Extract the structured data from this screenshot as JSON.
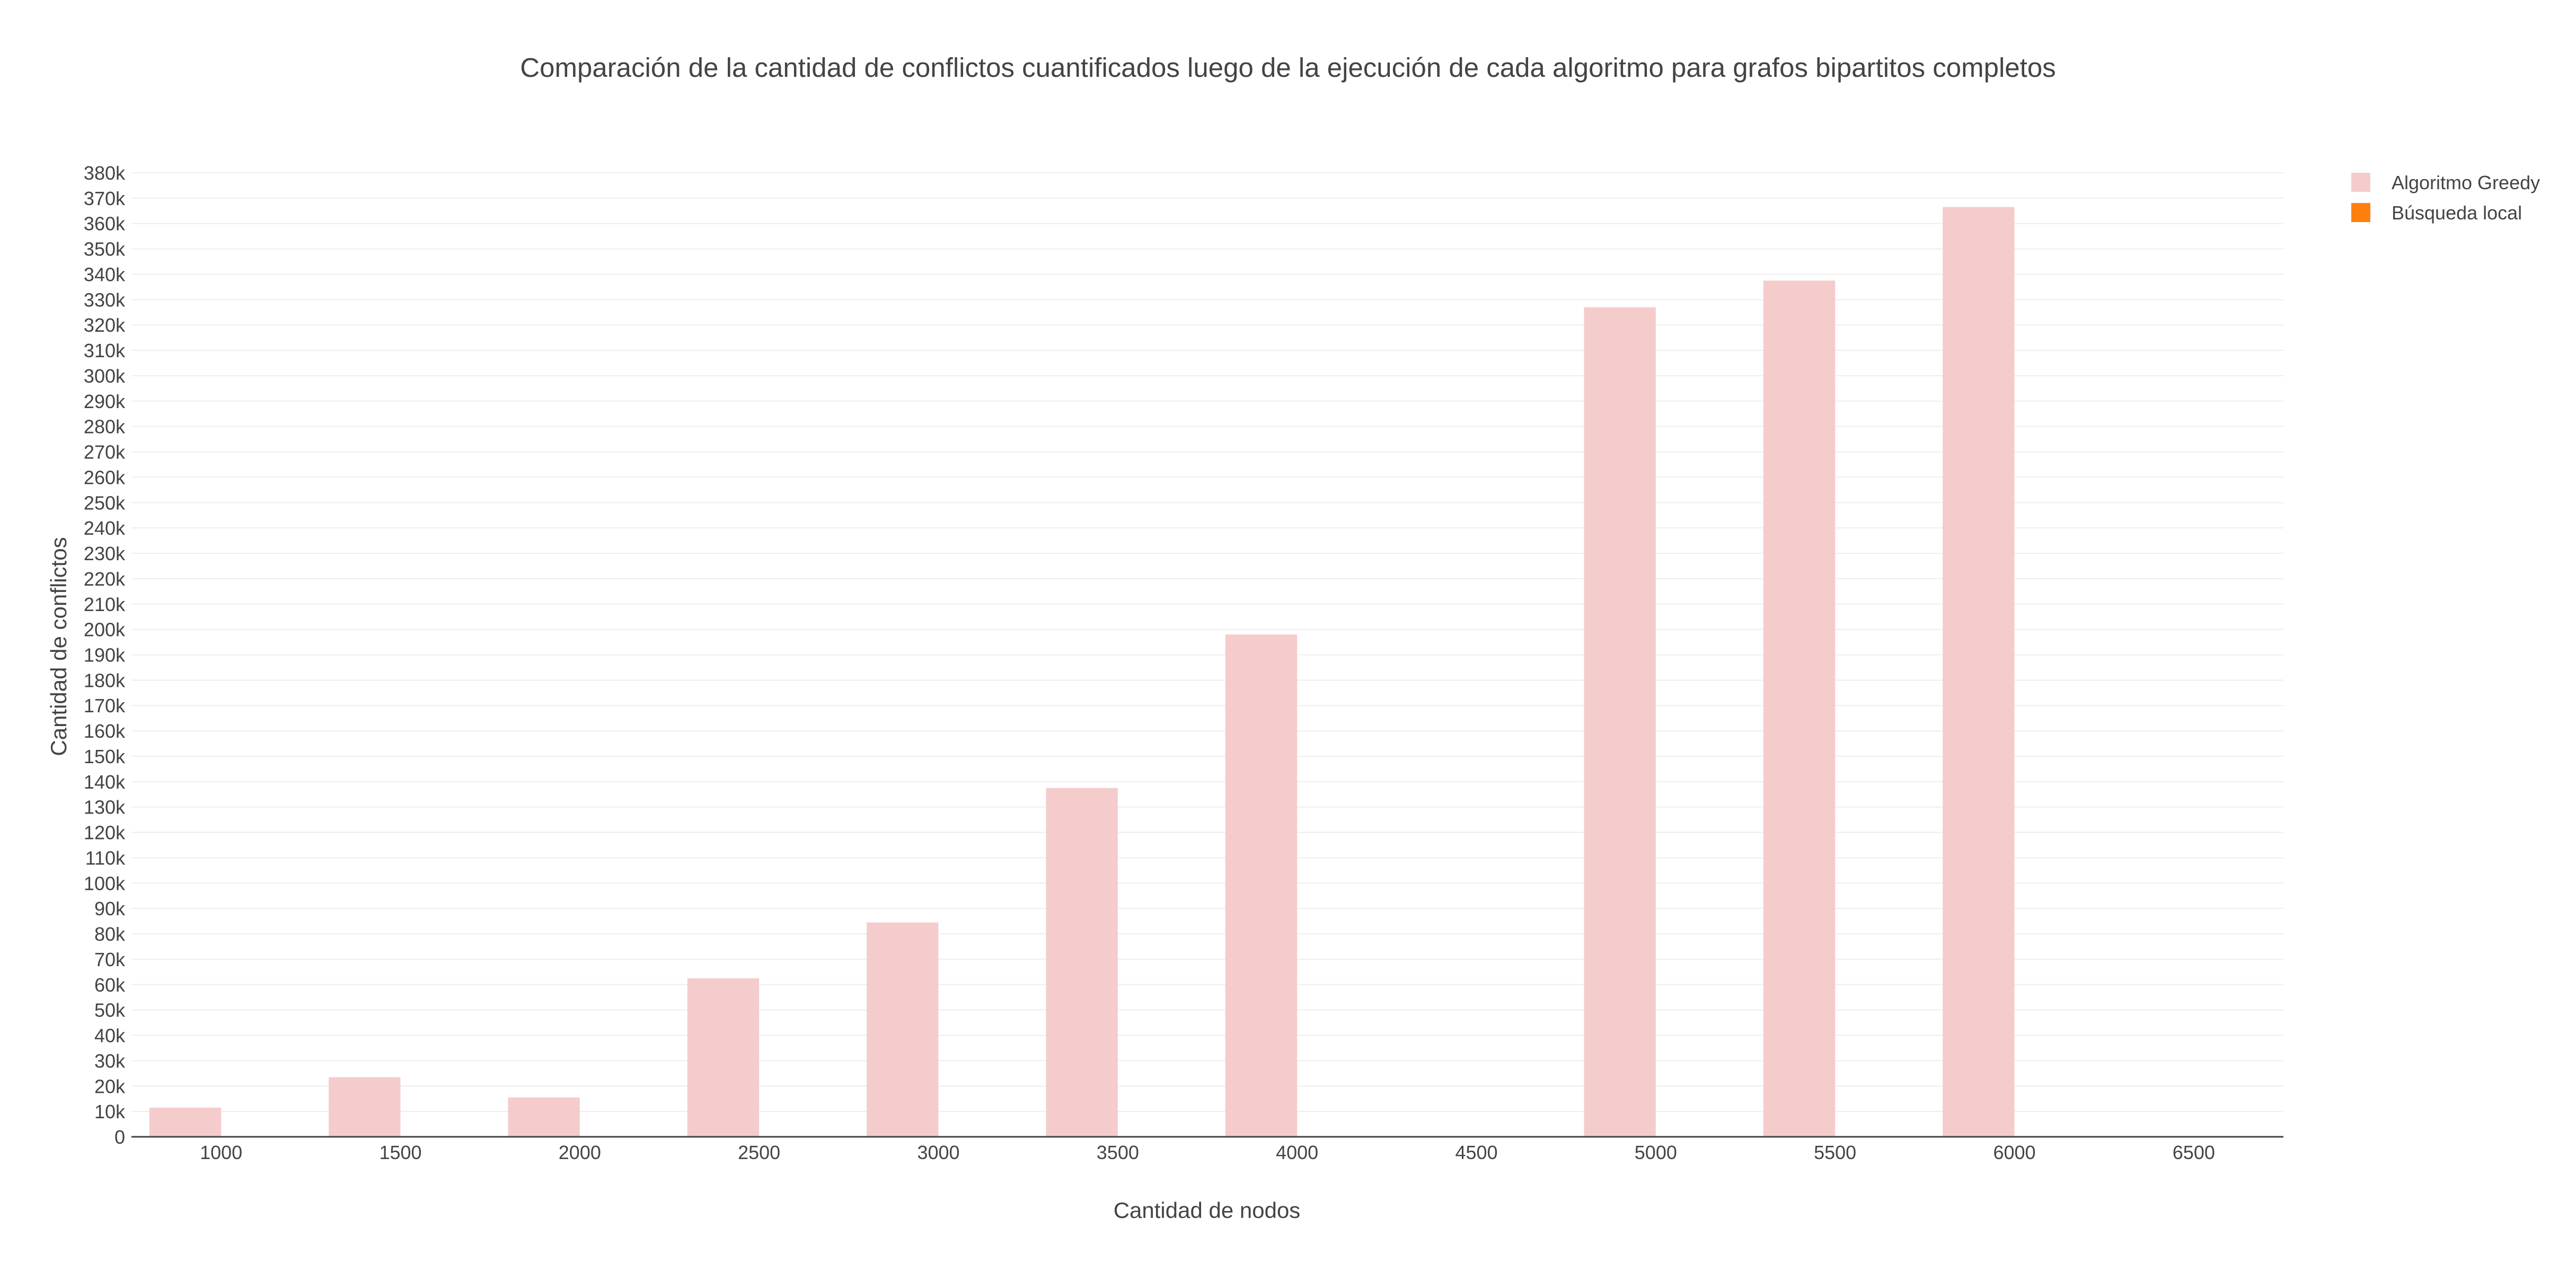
{
  "colors": {
    "greedy": "#f4cccc",
    "local_search": "#ff7f0e",
    "grid": "#eeeeee",
    "axis_line": "#444444",
    "text": "#444444"
  },
  "chart_data": {
    "type": "bar",
    "title": "Comparación de la cantidad de conflictos cuantificados luego de la ejecución de cada algoritmo para grafos bipartitos completos",
    "xlabel": "Cantidad de nodos",
    "ylabel": "Cantidad de conflictos",
    "categories": [
      "1000",
      "1500",
      "2000",
      "2500",
      "3000",
      "3500",
      "4000",
      "4500",
      "5000",
      "5500",
      "6000",
      "6500"
    ],
    "series": [
      {
        "name": "Algoritmo Greedy",
        "color": "#f4cccc",
        "values": [
          11500,
          23500,
          15500,
          62500,
          84500,
          137500,
          198000,
          0,
          327000,
          337500,
          366500,
          0
        ]
      },
      {
        "name": "Búsqueda local",
        "color": "#ff7f0e",
        "values": [
          0,
          0,
          0,
          0,
          0,
          0,
          0,
          0,
          0,
          0,
          0,
          0
        ]
      }
    ],
    "ylim": [
      0,
      380000
    ],
    "ytick_step": 10000,
    "ytick_labels": [
      "0",
      "10k",
      "20k",
      "30k",
      "40k",
      "50k",
      "60k",
      "70k",
      "80k",
      "90k",
      "100k",
      "110k",
      "120k",
      "130k",
      "140k",
      "150k",
      "160k",
      "170k",
      "180k",
      "190k",
      "200k",
      "210k",
      "220k",
      "230k",
      "240k",
      "250k",
      "260k",
      "270k",
      "280k",
      "290k",
      "300k",
      "310k",
      "320k",
      "330k",
      "340k",
      "350k",
      "360k",
      "370k",
      "380k"
    ],
    "grid": true,
    "legend_position": "top-right"
  }
}
